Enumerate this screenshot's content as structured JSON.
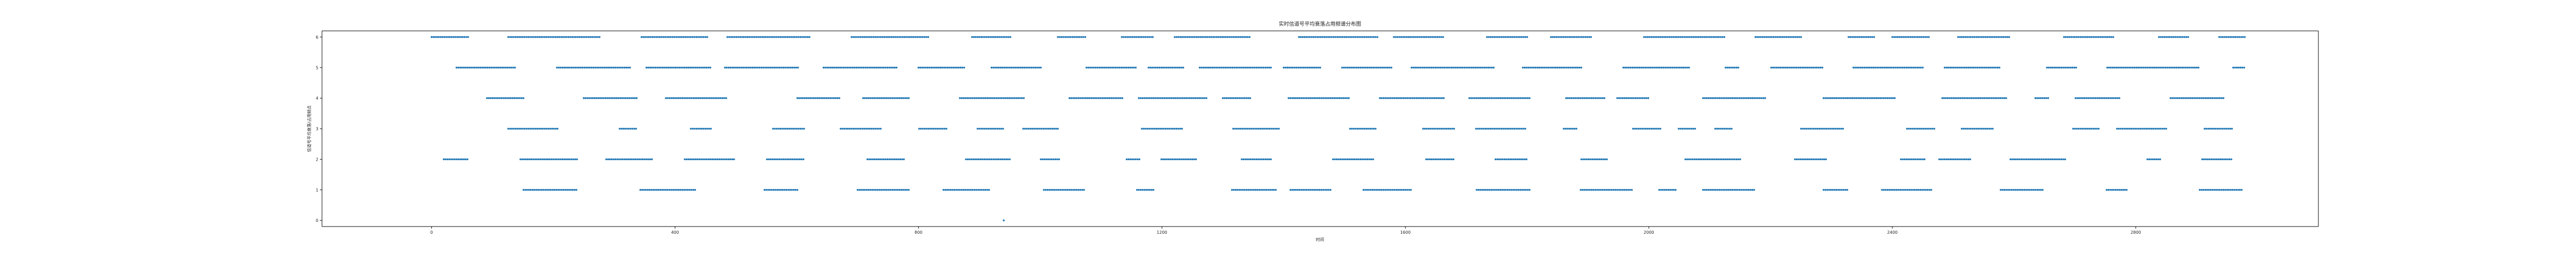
{
  "chart_data": {
    "type": "scatter",
    "title": "实时信道号平均衰落占用频谱分布图",
    "xlabel": "时间",
    "ylabel": "信道号平均衰落/占用频点",
    "xlim": [
      -180,
      3100
    ],
    "ylim": [
      -0.2,
      6.2
    ],
    "xticks": [
      0,
      400,
      800,
      1200,
      1600,
      2000,
      2400,
      2800
    ],
    "yticks": [
      0,
      1,
      2,
      3,
      4,
      5,
      6
    ],
    "grid": false,
    "colors": {
      "marker": "#1f77b4"
    },
    "levels": [
      {
        "y": 6,
        "x_start": 0,
        "x_end": 2980,
        "density": 0.72
      },
      {
        "y": 5,
        "x_start": 5,
        "x_end": 2980,
        "density": 0.8
      },
      {
        "y": 4,
        "x_start": 10,
        "x_end": 2985,
        "density": 0.55
      },
      {
        "y": 3,
        "x_start": 30,
        "x_end": 2960,
        "density": 0.38
      },
      {
        "y": 2,
        "x_start": 20,
        "x_end": 2975,
        "density": 0.42
      },
      {
        "y": 1,
        "x_start": 100,
        "x_end": 2975,
        "density": 0.4
      },
      {
        "y": 0,
        "x_start": 940,
        "x_end": 940,
        "density": 1.0
      }
    ]
  }
}
